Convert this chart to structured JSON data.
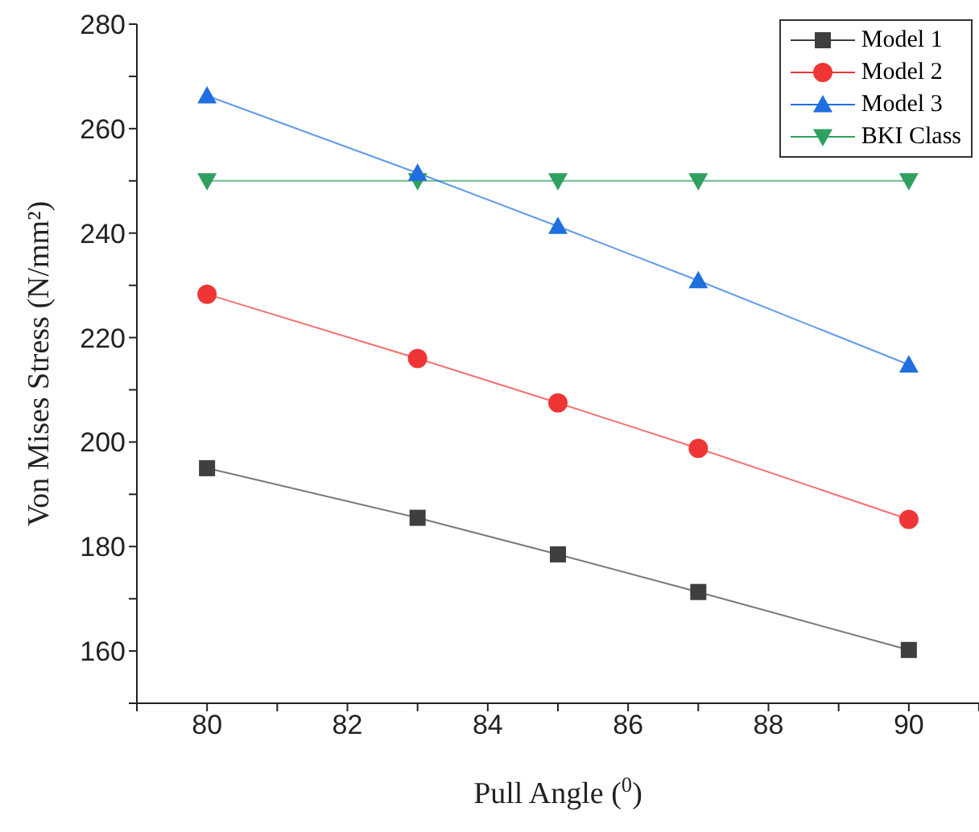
{
  "chart_data": {
    "type": "line",
    "xlabel": "Pull Angle ($^{0}$)",
    "ylabel": "Von Mises Stress (N/mm²)",
    "x": [
      80,
      83,
      85,
      87,
      90
    ],
    "series": [
      {
        "name": "Model 1",
        "color": "#3f3f3f",
        "marker": "square",
        "values": [
          195,
          185.5,
          178.5,
          171.3,
          160.2
        ]
      },
      {
        "name": "Model 2",
        "color": "#ef3535",
        "marker": "circle",
        "values": [
          228.3,
          216,
          207.5,
          198.8,
          185.2
        ]
      },
      {
        "name": "Model 3",
        "color": "#1f6fdf",
        "marker": "triangle",
        "values": [
          266.3,
          251.5,
          241.3,
          230.9,
          214.8
        ]
      },
      {
        "name": "BKI Class",
        "color": "#2fa060",
        "marker": "triangle-down",
        "values": [
          250,
          250,
          250,
          250,
          250
        ]
      }
    ],
    "xlim": [
      79,
      91
    ],
    "xticks": [
      {
        "value": 79,
        "label": null
      },
      80,
      {
        "value": 81,
        "label": null
      },
      82,
      {
        "value": 83,
        "label": null
      },
      84,
      {
        "value": 85,
        "label": null
      },
      86,
      {
        "value": 87,
        "label": null
      },
      88,
      {
        "value": 89,
        "label": null
      },
      90,
      {
        "value": 91,
        "label": null
      }
    ],
    "ylim": [
      150,
      280
    ],
    "yticks": [
      {
        "value": 150,
        "label": null
      },
      160,
      {
        "value": 170,
        "label": null
      },
      180,
      {
        "value": 190,
        "label": null
      },
      200,
      {
        "value": 210,
        "label": null
      },
      220,
      {
        "value": 230,
        "label": null
      },
      240,
      {
        "value": 250,
        "label": null
      },
      260,
      {
        "value": 270,
        "label": null
      },
      280
    ],
    "grid": false,
    "legend": "top right",
    "line_style": "solid"
  }
}
